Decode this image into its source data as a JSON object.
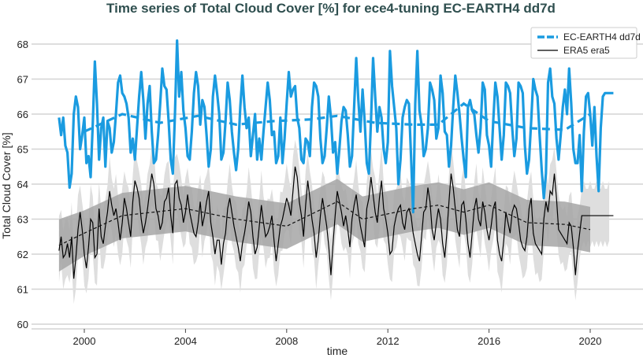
{
  "chart_data": {
    "type": "line",
    "title": "Time series of Total Cloud Cover [%] for ece4-tuning EC-EARTH4 dd7d",
    "xlabel": "time",
    "ylabel": "Total Cloud Cover [%]",
    "xlim": [
      1997.5,
      2022.1
    ],
    "ylim": [
      60,
      68.5
    ],
    "xticks": [
      "2000",
      "2004",
      "2008",
      "2012",
      "2016",
      "2020"
    ],
    "yticks": [
      "60",
      "61",
      "62",
      "63",
      "64",
      "65",
      "66",
      "67",
      "68"
    ],
    "grid": "horizontal",
    "legend_position": "top-right",
    "start": "1999-01",
    "frequency": "monthly",
    "colors": {
      "model": "#1a9be0",
      "obs": "#000000",
      "obs_band_outer": "#dedede",
      "obs_band_inner": "#a6a6a6",
      "title": "#2f4f4f"
    },
    "series": [
      {
        "name": "EC-EARTH4 dd7d",
        "style": "dashed-legend",
        "values": [
          65.9,
          65.4,
          65.9,
          65.1,
          64.9,
          63.9,
          64.3,
          66.0,
          66.5,
          66.2,
          65.0,
          65.4,
          65.9,
          64.6,
          64.8,
          64.2,
          65.7,
          67.5,
          66.3,
          64.7,
          65.6,
          65.9,
          64.5,
          65.8,
          65.6,
          64.9,
          65.2,
          66.0,
          66.9,
          67.1,
          66.6,
          66.5,
          66.3,
          65.9,
          64.9,
          65.3,
          64.7,
          65.6,
          66.5,
          67.2,
          66.4,
          65.3,
          66.3,
          66.8,
          65.5,
          64.6,
          64.7,
          65.4,
          66.3,
          67.3,
          66.8,
          66.7,
          65.8,
          64.7,
          64.3,
          66.0,
          68.1,
          66.5,
          67.2,
          66.1,
          65.6,
          64.8,
          64.7,
          65.5,
          66.6,
          67.2,
          66.8,
          65.7,
          66.4,
          66.2,
          65.4,
          64.5,
          65.0,
          66.5,
          67.1,
          66.6,
          66.0,
          64.7,
          64.9,
          65.8,
          66.9,
          66.4,
          65.5,
          64.9,
          64.4,
          65.0,
          66.2,
          67.1,
          66.2,
          65.6,
          65.9,
          64.8,
          65.4,
          66.0,
          64.7,
          65.3,
          64.7,
          65.5,
          66.2,
          66.9,
          66.4,
          65.4,
          65.5,
          64.6,
          64.8,
          65.9,
          64.6,
          65.3,
          66.3,
          67.2,
          66.5,
          66.7,
          66.8,
          65.9,
          65.6,
          64.7,
          64.6,
          65.3,
          65.2,
          64.8,
          66.2,
          66.9,
          66.8,
          66.5,
          65.3,
          64.6,
          64.8,
          65.6,
          66.5,
          65.9,
          64.9,
          65.2,
          64.3,
          65.0,
          65.8,
          66.2,
          66.1,
          65.4,
          64.5,
          64.8,
          66.2,
          67.6,
          66.4,
          65.5,
          66.7,
          65.8,
          64.6,
          64.3,
          65.8,
          67.6,
          66.5,
          65.5,
          66.2,
          65.9,
          65.0,
          64.6,
          65.2,
          67.8,
          66.8,
          66.2,
          65.6,
          64.0,
          64.7,
          65.9,
          66.2,
          66.4,
          66.3,
          64.8,
          63.2,
          66.3,
          67.8,
          66.1,
          65.7,
          64.8,
          65.0,
          65.6,
          66.9,
          66.7,
          66.4,
          65.3,
          65.6,
          67.1,
          66.6,
          65.5,
          65.4,
          64.5,
          65.1,
          66.2,
          67.1,
          66.6,
          66.0,
          65.3,
          64.7,
          64.2,
          66.2,
          66.4,
          66.1,
          66.0,
          65.4,
          64.9,
          65.6,
          66.9,
          66.7,
          65.4,
          65.1,
          64.5,
          65.8,
          66.9,
          66.5,
          65.6,
          64.7,
          65.4,
          66.9,
          66.8,
          66.6,
          65.6,
          64.8,
          65.3,
          66.9,
          66.8,
          66.6,
          65.1,
          64.3,
          64.7,
          65.8,
          67.0,
          66.7,
          66.5,
          65.4,
          64.4,
          63.6,
          64.3,
          66.9,
          67.3,
          66.5,
          66.3,
          65.3,
          64.7,
          65.4,
          66.2,
          66.7,
          66.0,
          67.3,
          66.3,
          65.0,
          64.6,
          64.6,
          65.4,
          63.8,
          65.5,
          66.5,
          66.6,
          66.0,
          65.1,
          66.2,
          64.8,
          63.8,
          65.6,
          66.5,
          66.6,
          66.6,
          66.6,
          66.6,
          66.6
        ]
      },
      {
        "name": "ERA5 era5",
        "values": [
          62.1,
          62.5,
          61.9,
          62.0,
          62.3,
          61.9,
          62.5,
          61.3,
          61.9,
          62.7,
          63.2,
          62.7,
          62.0,
          61.6,
          62.2,
          63.0,
          62.9,
          61.9,
          62.0,
          63.3,
          62.5,
          62.3,
          62.8,
          63.2,
          63.8,
          63.4,
          63.1,
          63.3,
          62.9,
          62.4,
          62.9,
          63.6,
          63.3,
          62.9,
          62.5,
          63.5,
          64.1,
          63.9,
          63.6,
          63.0,
          62.6,
          62.9,
          63.3,
          63.8,
          64.3,
          64.0,
          63.3,
          63.1,
          62.7,
          62.9,
          63.5,
          63.6,
          63.9,
          63.1,
          62.6,
          64.0,
          64.1,
          63.6,
          63.4,
          62.9,
          63.2,
          63.7,
          63.2,
          62.9,
          62.6,
          62.5,
          62.9,
          63.5,
          62.8,
          63.1,
          63.5,
          63.8,
          62.9,
          62.5,
          62.0,
          62.4,
          62.4,
          61.7,
          62.3,
          62.6,
          63.3,
          63.6,
          63.2,
          62.8,
          62.5,
          62.2,
          61.8,
          62.3,
          62.6,
          63.0,
          63.5,
          63.2,
          62.5,
          62.0,
          62.2,
          62.8,
          63.4,
          62.9,
          62.5,
          62.6,
          62.8,
          63.1,
          62.4,
          61.8,
          62.3,
          62.8,
          63.0,
          63.3,
          63.6,
          63.4,
          63.1,
          63.8,
          64.5,
          64.2,
          63.5,
          63.1,
          62.5,
          63.4,
          64.1,
          63.6,
          63.0,
          62.6,
          61.9,
          62.4,
          63.1,
          63.6,
          63.2,
          62.8,
          62.2,
          61.4,
          62.3,
          63.1,
          63.8,
          63.5,
          63.2,
          62.8,
          63.1,
          62.7,
          62.2,
          63.0,
          63.4,
          63.7,
          63.2,
          62.8,
          62.5,
          62.2,
          63.3,
          63.6,
          64.2,
          63.7,
          63.2,
          62.9,
          63.6,
          64.1,
          63.3,
          63.0,
          62.6,
          62.0,
          62.1,
          62.8,
          63.1,
          63.3,
          63.4,
          62.9,
          62.7,
          63.2,
          63.3,
          63.1,
          62.6,
          62.3,
          62.0,
          61.8,
          62.5,
          63.2,
          63.3,
          63.9,
          63.5,
          62.7,
          62.4,
          62.9,
          63.3,
          63.0,
          62.3,
          61.9,
          62.6,
          63.5,
          64.3,
          63.9,
          63.3,
          62.7,
          62.5,
          63.4,
          63.5,
          63.0,
          62.3,
          61.9,
          62.6,
          63.3,
          63.6,
          63.0,
          62.8,
          63.5,
          63.2,
          62.7,
          62.4,
          62.8,
          63.3,
          63.5,
          62.4,
          62.0,
          61.8,
          62.4,
          63.2,
          62.9,
          62.6,
          63.2,
          63.4,
          63.3,
          62.9,
          62.4,
          62.2,
          62.1,
          62.5,
          63.3,
          63.6,
          62.6,
          62.3,
          62.2,
          62.1,
          62.0,
          63.0,
          63.5,
          63.2,
          63.8,
          63.7,
          64.3,
          63.6,
          62.7,
          62.6,
          62.5,
          62.4,
          62.3,
          62.9,
          62.8,
          62.2,
          61.4,
          62.1,
          62.6,
          63.1,
          63.1,
          63.1,
          63.1,
          63.1,
          63.1,
          63.1,
          63.1,
          63.1,
          63.1,
          63.1,
          63.1,
          63.1,
          63.1,
          63.1,
          63.1
        ]
      }
    ],
    "era5_spread": 0.9,
    "rolling_mean_model": {
      "x": [
        2000.0,
        2001.5,
        2003.0,
        2004.5,
        2006.0,
        2007.5,
        2009.0,
        2010.0,
        2011.5,
        2013.0,
        2014.0,
        2015.0,
        2016.0,
        2017.5,
        2019.0,
        2020.0
      ],
      "y": [
        65.5,
        66.0,
        65.75,
        65.95,
        65.7,
        65.8,
        65.85,
        65.95,
        65.75,
        65.7,
        65.7,
        66.3,
        65.8,
        65.6,
        65.55,
        66.0
      ]
    },
    "rolling_mean_obs": {
      "x": [
        1999.0,
        2000.0,
        2001.5,
        2004.0,
        2006.0,
        2008.0,
        2010.0,
        2011.0,
        2013.0,
        2014.0,
        2015.0,
        2016.0,
        2017.5,
        2019.0,
        2020.0
      ],
      "y": [
        62.25,
        62.6,
        63.1,
        63.3,
        63.0,
        62.8,
        63.5,
        63.0,
        63.3,
        63.4,
        63.2,
        63.4,
        62.9,
        62.85,
        62.7
      ]
    },
    "rolling_band_halfwidth": 0.65
  }
}
